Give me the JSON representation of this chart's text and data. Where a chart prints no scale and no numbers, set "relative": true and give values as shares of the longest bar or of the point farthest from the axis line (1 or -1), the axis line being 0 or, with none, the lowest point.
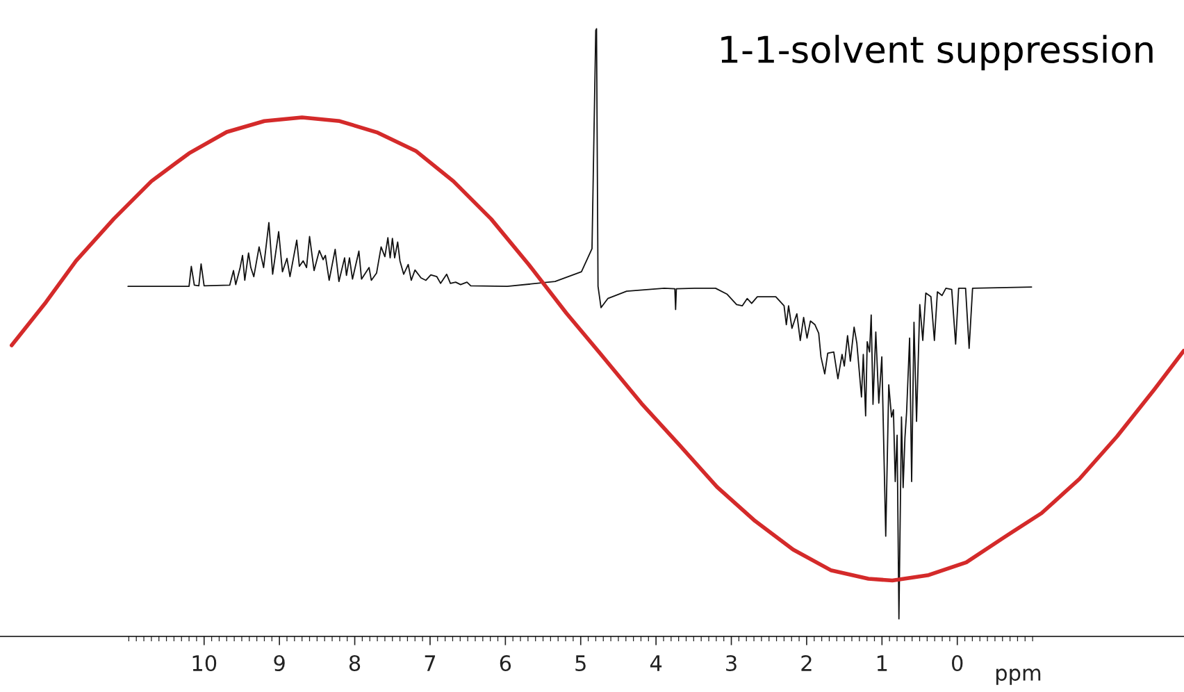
{
  "chart_data": {
    "type": "line",
    "title": "1-1-solvent suppression",
    "xlabel": "ppm",
    "relative": true,
    "tick_labels": "x",
    "line_style": "solid",
    "marker": "none",
    "xlim": [
      12.71,
      -3.01
    ],
    "xticks": [
      {
        "value": 11,
        "label": null
      },
      {
        "value": 10.9,
        "label": null
      },
      {
        "value": 10.8,
        "label": null
      },
      {
        "value": 10.7,
        "label": null
      },
      {
        "value": 10.6,
        "label": null
      },
      {
        "value": 10.5,
        "label": null
      },
      {
        "value": 10.4,
        "label": null
      },
      {
        "value": 10.3,
        "label": null
      },
      {
        "value": 10.2,
        "label": null
      },
      {
        "value": 10.1,
        "label": null
      },
      10,
      {
        "value": 9.9,
        "label": null
      },
      {
        "value": 9.8,
        "label": null
      },
      {
        "value": 9.7,
        "label": null
      },
      {
        "value": 9.6,
        "label": null
      },
      {
        "value": 9.5,
        "label": null
      },
      {
        "value": 9.4,
        "label": null
      },
      {
        "value": 9.3,
        "label": null
      },
      {
        "value": 9.2,
        "label": null
      },
      {
        "value": 9.1,
        "label": null
      },
      9,
      {
        "value": 8.9,
        "label": null
      },
      {
        "value": 8.8,
        "label": null
      },
      {
        "value": 8.7,
        "label": null
      },
      {
        "value": 8.6,
        "label": null
      },
      {
        "value": 8.5,
        "label": null
      },
      {
        "value": 8.4,
        "label": null
      },
      {
        "value": 8.3,
        "label": null
      },
      {
        "value": 8.2,
        "label": null
      },
      {
        "value": 8.1,
        "label": null
      },
      8,
      {
        "value": 7.9,
        "label": null
      },
      {
        "value": 7.8,
        "label": null
      },
      {
        "value": 7.7,
        "label": null
      },
      {
        "value": 7.6,
        "label": null
      },
      {
        "value": 7.5,
        "label": null
      },
      {
        "value": 7.4,
        "label": null
      },
      {
        "value": 7.3,
        "label": null
      },
      {
        "value": 7.2,
        "label": null
      },
      {
        "value": 7.1,
        "label": null
      },
      7,
      {
        "value": 6.9,
        "label": null
      },
      {
        "value": 6.8,
        "label": null
      },
      {
        "value": 6.7,
        "label": null
      },
      {
        "value": 6.6,
        "label": null
      },
      {
        "value": 6.5,
        "label": null
      },
      {
        "value": 6.4,
        "label": null
      },
      {
        "value": 6.3,
        "label": null
      },
      {
        "value": 6.2,
        "label": null
      },
      {
        "value": 6.1,
        "label": null
      },
      6,
      {
        "value": 5.9,
        "label": null
      },
      {
        "value": 5.8,
        "label": null
      },
      {
        "value": 5.7,
        "label": null
      },
      {
        "value": 5.6,
        "label": null
      },
      {
        "value": 5.5,
        "label": null
      },
      {
        "value": 5.4,
        "label": null
      },
      {
        "value": 5.3,
        "label": null
      },
      {
        "value": 5.2,
        "label": null
      },
      {
        "value": 5.1,
        "label": null
      },
      5,
      {
        "value": 4.9,
        "label": null
      },
      {
        "value": 4.8,
        "label": null
      },
      {
        "value": 4.7,
        "label": null
      },
      {
        "value": 4.6,
        "label": null
      },
      {
        "value": 4.5,
        "label": null
      },
      {
        "value": 4.4,
        "label": null
      },
      {
        "value": 4.3,
        "label": null
      },
      {
        "value": 4.2,
        "label": null
      },
      {
        "value": 4.1,
        "label": null
      },
      4,
      {
        "value": 3.9,
        "label": null
      },
      {
        "value": 3.8,
        "label": null
      },
      {
        "value": 3.7,
        "label": null
      },
      {
        "value": 3.6,
        "label": null
      },
      {
        "value": 3.5,
        "label": null
      },
      {
        "value": 3.4,
        "label": null
      },
      {
        "value": 3.3,
        "label": null
      },
      {
        "value": 3.2,
        "label": null
      },
      {
        "value": 3.1,
        "label": null
      },
      3,
      {
        "value": 2.9,
        "label": null
      },
      {
        "value": 2.8,
        "label": null
      },
      {
        "value": 2.7,
        "label": null
      },
      {
        "value": 2.6,
        "label": null
      },
      {
        "value": 2.5,
        "label": null
      },
      {
        "value": 2.4,
        "label": null
      },
      {
        "value": 2.3,
        "label": null
      },
      {
        "value": 2.2,
        "label": null
      },
      {
        "value": 2.1,
        "label": null
      },
      2,
      {
        "value": 1.9,
        "label": null
      },
      {
        "value": 1.8,
        "label": null
      },
      {
        "value": 1.7,
        "label": null
      },
      {
        "value": 1.6,
        "label": null
      },
      {
        "value": 1.5,
        "label": null
      },
      {
        "value": 1.4,
        "label": null
      },
      {
        "value": 1.3,
        "label": null
      },
      {
        "value": 1.2,
        "label": null
      },
      {
        "value": 1.1,
        "label": null
      },
      1,
      {
        "value": 0.9,
        "label": null
      },
      {
        "value": 0.8,
        "label": null
      },
      {
        "value": 0.7,
        "label": null
      },
      {
        "value": 0.6,
        "label": null
      },
      {
        "value": 0.5,
        "label": null
      },
      {
        "value": 0.4,
        "label": null
      },
      {
        "value": 0.3,
        "label": null
      },
      {
        "value": 0.2,
        "label": null
      },
      {
        "value": 0.1,
        "label": null
      },
      0,
      {
        "value": -0.1,
        "label": null
      },
      {
        "value": -0.2,
        "label": null
      },
      {
        "value": -0.3,
        "label": null
      },
      {
        "value": -0.4,
        "label": null
      },
      {
        "value": -0.5,
        "label": null
      },
      {
        "value": -0.6,
        "label": null
      },
      {
        "value": -0.7,
        "label": null
      },
      {
        "value": -0.8,
        "label": null
      },
      {
        "value": -0.9,
        "label": null
      },
      {
        "value": -1,
        "label": null
      }
    ],
    "series": [
      {
        "color": "#111111",
        "x": [
          11.01,
          10.2,
          10.17,
          10.13,
          10.07,
          10.04,
          10.0,
          9.66,
          9.61,
          9.58,
          9.525,
          9.49,
          9.46,
          9.41,
          9.38,
          9.34,
          9.27,
          9.21,
          9.14,
          9.09,
          9.01,
          8.96,
          8.9,
          8.86,
          8.77,
          8.735,
          8.685,
          8.64,
          8.6,
          8.54,
          8.47,
          8.42,
          8.39,
          8.34,
          8.26,
          8.21,
          8.135,
          8.11,
          8.07,
          8.03,
          7.945,
          7.91,
          7.81,
          7.78,
          7.71,
          7.65,
          7.6,
          7.56,
          7.53,
          7.5,
          7.47,
          7.43,
          7.4,
          7.35,
          7.29,
          7.25,
          7.2,
          7.12,
          7.055,
          6.99,
          6.91,
          6.86,
          6.78,
          6.73,
          6.66,
          6.595,
          6.51,
          6.46,
          5.975,
          5.34,
          4.99,
          4.85,
          4.8,
          4.79,
          4.77,
          4.73,
          4.64,
          4.39,
          3.89,
          3.75,
          3.74,
          3.73,
          3.485,
          3.21,
          3.055,
          2.93,
          2.855,
          2.79,
          2.73,
          2.655,
          2.41,
          2.3,
          2.27,
          2.24,
          2.195,
          2.13,
          2.085,
          2.04,
          1.995,
          1.95,
          1.89,
          1.84,
          1.81,
          1.76,
          1.72,
          1.64,
          1.585,
          1.53,
          1.5,
          1.457,
          1.42,
          1.37,
          1.334,
          1.272,
          1.248,
          1.217,
          1.196,
          1.165,
          1.143,
          1.119,
          1.082,
          1.042,
          1.002,
          0.95,
          0.91,
          0.873,
          0.848,
          0.824,
          0.799,
          0.775,
          0.741,
          0.719,
          0.695,
          0.673,
          0.633,
          0.606,
          0.575,
          0.541,
          0.498,
          0.458,
          0.418,
          0.35,
          0.304,
          0.264,
          0.203,
          0.151,
          0.074,
          0.022,
          -0.018,
          -0.11,
          -0.157,
          -0.203,
          -0.986
        ],
        "values": [
          0.576,
          0.576,
          0.609,
          0.578,
          0.577,
          0.613,
          0.577,
          0.578,
          0.602,
          0.579,
          0.605,
          0.627,
          0.586,
          0.631,
          0.607,
          0.592,
          0.641,
          0.607,
          0.681,
          0.596,
          0.666,
          0.6,
          0.622,
          0.592,
          0.652,
          0.609,
          0.618,
          0.607,
          0.658,
          0.602,
          0.635,
          0.62,
          0.627,
          0.586,
          0.637,
          0.584,
          0.623,
          0.594,
          0.623,
          0.588,
          0.634,
          0.588,
          0.607,
          0.586,
          0.598,
          0.641,
          0.625,
          0.656,
          0.623,
          0.655,
          0.623,
          0.649,
          0.618,
          0.596,
          0.612,
          0.586,
          0.603,
          0.59,
          0.586,
          0.595,
          0.592,
          0.581,
          0.596,
          0.581,
          0.583,
          0.579,
          0.583,
          0.577,
          0.576,
          0.584,
          0.6,
          0.638,
          0.997,
          1.0,
          0.576,
          0.541,
          0.556,
          0.568,
          0.573,
          0.572,
          0.538,
          0.572,
          0.573,
          0.573,
          0.563,
          0.546,
          0.544,
          0.556,
          0.548,
          0.559,
          0.559,
          0.544,
          0.513,
          0.544,
          0.507,
          0.531,
          0.487,
          0.525,
          0.491,
          0.519,
          0.513,
          0.499,
          0.46,
          0.432,
          0.466,
          0.468,
          0.424,
          0.464,
          0.445,
          0.495,
          0.453,
          0.509,
          0.483,
          0.394,
          0.464,
          0.363,
          0.485,
          0.468,
          0.529,
          0.382,
          0.501,
          0.384,
          0.46,
          0.165,
          0.414,
          0.361,
          0.373,
          0.255,
          0.331,
          0.029,
          0.361,
          0.245,
          0.327,
          0.369,
          0.491,
          0.255,
          0.517,
          0.354,
          0.546,
          0.487,
          0.565,
          0.559,
          0.487,
          0.567,
          0.561,
          0.573,
          0.571,
          0.481,
          0.573,
          0.573,
          0.474,
          0.573,
          0.575
        ]
      },
      {
        "color": "#d42a2a",
        "x": [
          12.555,
          12.1,
          11.7,
          11.2,
          10.7,
          10.2,
          9.7,
          9.2,
          8.7,
          8.2,
          7.695,
          7.19,
          6.69,
          6.19,
          5.69,
          5.19,
          4.69,
          4.19,
          3.69,
          3.19,
          2.685,
          2.18,
          1.68,
          1.18,
          0.862,
          0.38,
          -0.12,
          -0.62,
          -1.12,
          -1.62,
          -2.12,
          -2.62,
          -3.006
        ],
        "values": [
          0.479,
          0.55,
          0.618,
          0.687,
          0.749,
          0.795,
          0.83,
          0.848,
          0.854,
          0.848,
          0.829,
          0.799,
          0.749,
          0.687,
          0.612,
          0.532,
          0.458,
          0.383,
          0.315,
          0.246,
          0.19,
          0.143,
          0.109,
          0.095,
          0.092,
          0.101,
          0.122,
          0.163,
          0.203,
          0.259,
          0.329,
          0.407,
          0.47
        ]
      }
    ]
  }
}
